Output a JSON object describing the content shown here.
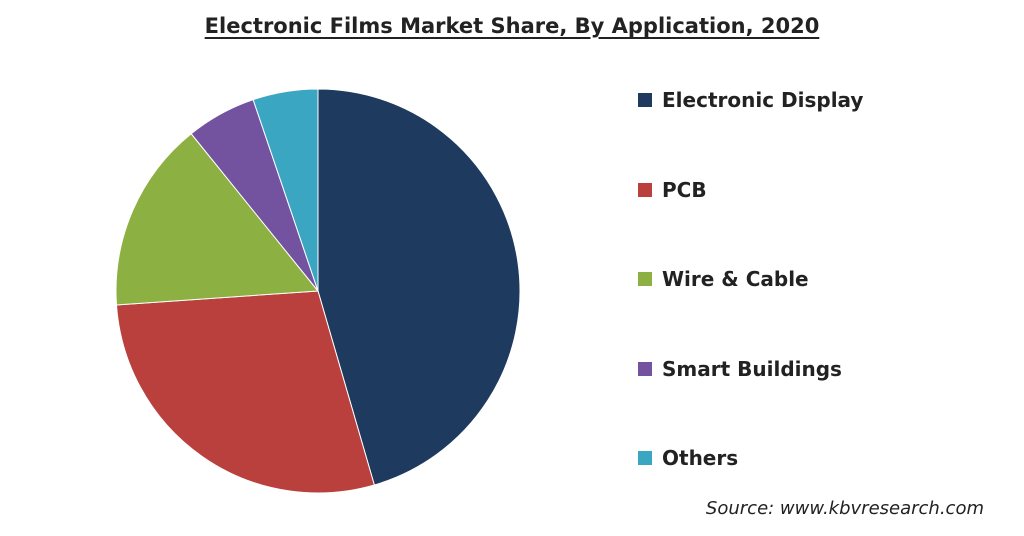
{
  "chart_data": {
    "type": "pie",
    "title": "Electronic Films Market Share, By Application, 2020",
    "start_angle_deg": 0,
    "direction": "clockwise",
    "slices": [
      {
        "label": "Electronic Display",
        "value": 45.5,
        "color": "#1e3a5f"
      },
      {
        "label": "PCB",
        "value": 28.4,
        "color": "#b9403d"
      },
      {
        "label": "Wire & Cable",
        "value": 15.3,
        "color": "#8db043"
      },
      {
        "label": "Smart Buildings",
        "value": 5.6,
        "color": "#7352a0"
      },
      {
        "label": "Others",
        "value": 5.2,
        "color": "#3aa6c1"
      }
    ],
    "legend_position": "right",
    "source": "Source: www.kbvresearch.com"
  }
}
